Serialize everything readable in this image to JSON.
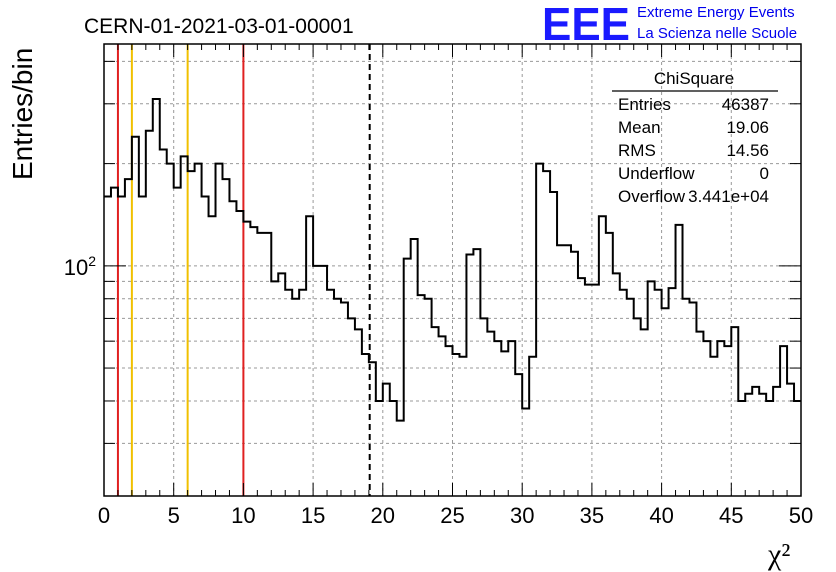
{
  "chart_data": {
    "type": "histogram",
    "title": "CERN-01-2021-03-01-00001",
    "xlabel": "χ²",
    "ylabel": "Entries/bin",
    "xlim": [
      0,
      50
    ],
    "ylim": [
      21,
      450
    ],
    "yscale": "log",
    "grid": true,
    "x_ticks": [
      "0",
      "5",
      "10",
      "15",
      "20",
      "25",
      "30",
      "35",
      "40",
      "45",
      "50"
    ],
    "y_ticks": [
      {
        "value": 100,
        "label": "10",
        "exponent": "2"
      }
    ],
    "bin_width": 0.5,
    "bin_start": 0,
    "values": [
      160,
      170,
      160,
      180,
      240,
      160,
      250,
      310,
      220,
      200,
      170,
      210,
      190,
      200,
      160,
      140,
      200,
      180,
      155,
      145,
      135,
      130,
      125,
      125,
      90,
      95,
      85,
      80,
      85,
      140,
      100,
      100,
      85,
      80,
      78,
      70,
      65,
      55,
      52,
      40,
      45,
      40,
      35,
      105,
      120,
      82,
      80,
      66,
      62,
      58,
      55,
      54,
      108,
      112,
      70,
      64,
      60,
      56,
      60,
      48,
      38,
      54,
      200,
      190,
      165,
      115,
      115,
      110,
      92,
      88,
      88,
      140,
      125,
      95,
      85,
      80,
      70,
      65,
      90,
      85,
      75,
      86,
      132,
      80,
      78,
      64,
      60,
      54,
      60,
      58,
      66,
      40,
      42,
      44,
      42,
      40,
      44,
      58,
      45,
      40
    ],
    "vertical_lines": [
      {
        "x": 1,
        "color": "#e02020",
        "style": "solid"
      },
      {
        "x": 2,
        "color": "#f0c000",
        "style": "solid"
      },
      {
        "x": 6,
        "color": "#f0c000",
        "style": "solid"
      },
      {
        "x": 10,
        "color": "#e02020",
        "style": "solid"
      },
      {
        "x": 19.06,
        "color": "#000000",
        "style": "dashed"
      }
    ],
    "stats_box": {
      "name": "ChiSquare",
      "rows": [
        {
          "label": "Entries",
          "value": "46387"
        },
        {
          "label": "Mean",
          "value": "19.06"
        },
        {
          "label": "RMS",
          "value": "14.56"
        },
        {
          "label": "Underflow",
          "value": "0"
        },
        {
          "label": "Overflow",
          "value": "3.441e+04"
        }
      ]
    },
    "line_color": "#000000",
    "grid_color": "#999999"
  },
  "logo": {
    "mark": "EEE",
    "line1": "Extreme Energy Events",
    "line2": "La Scienza nelle Scuole",
    "color": "#1a1aff"
  }
}
